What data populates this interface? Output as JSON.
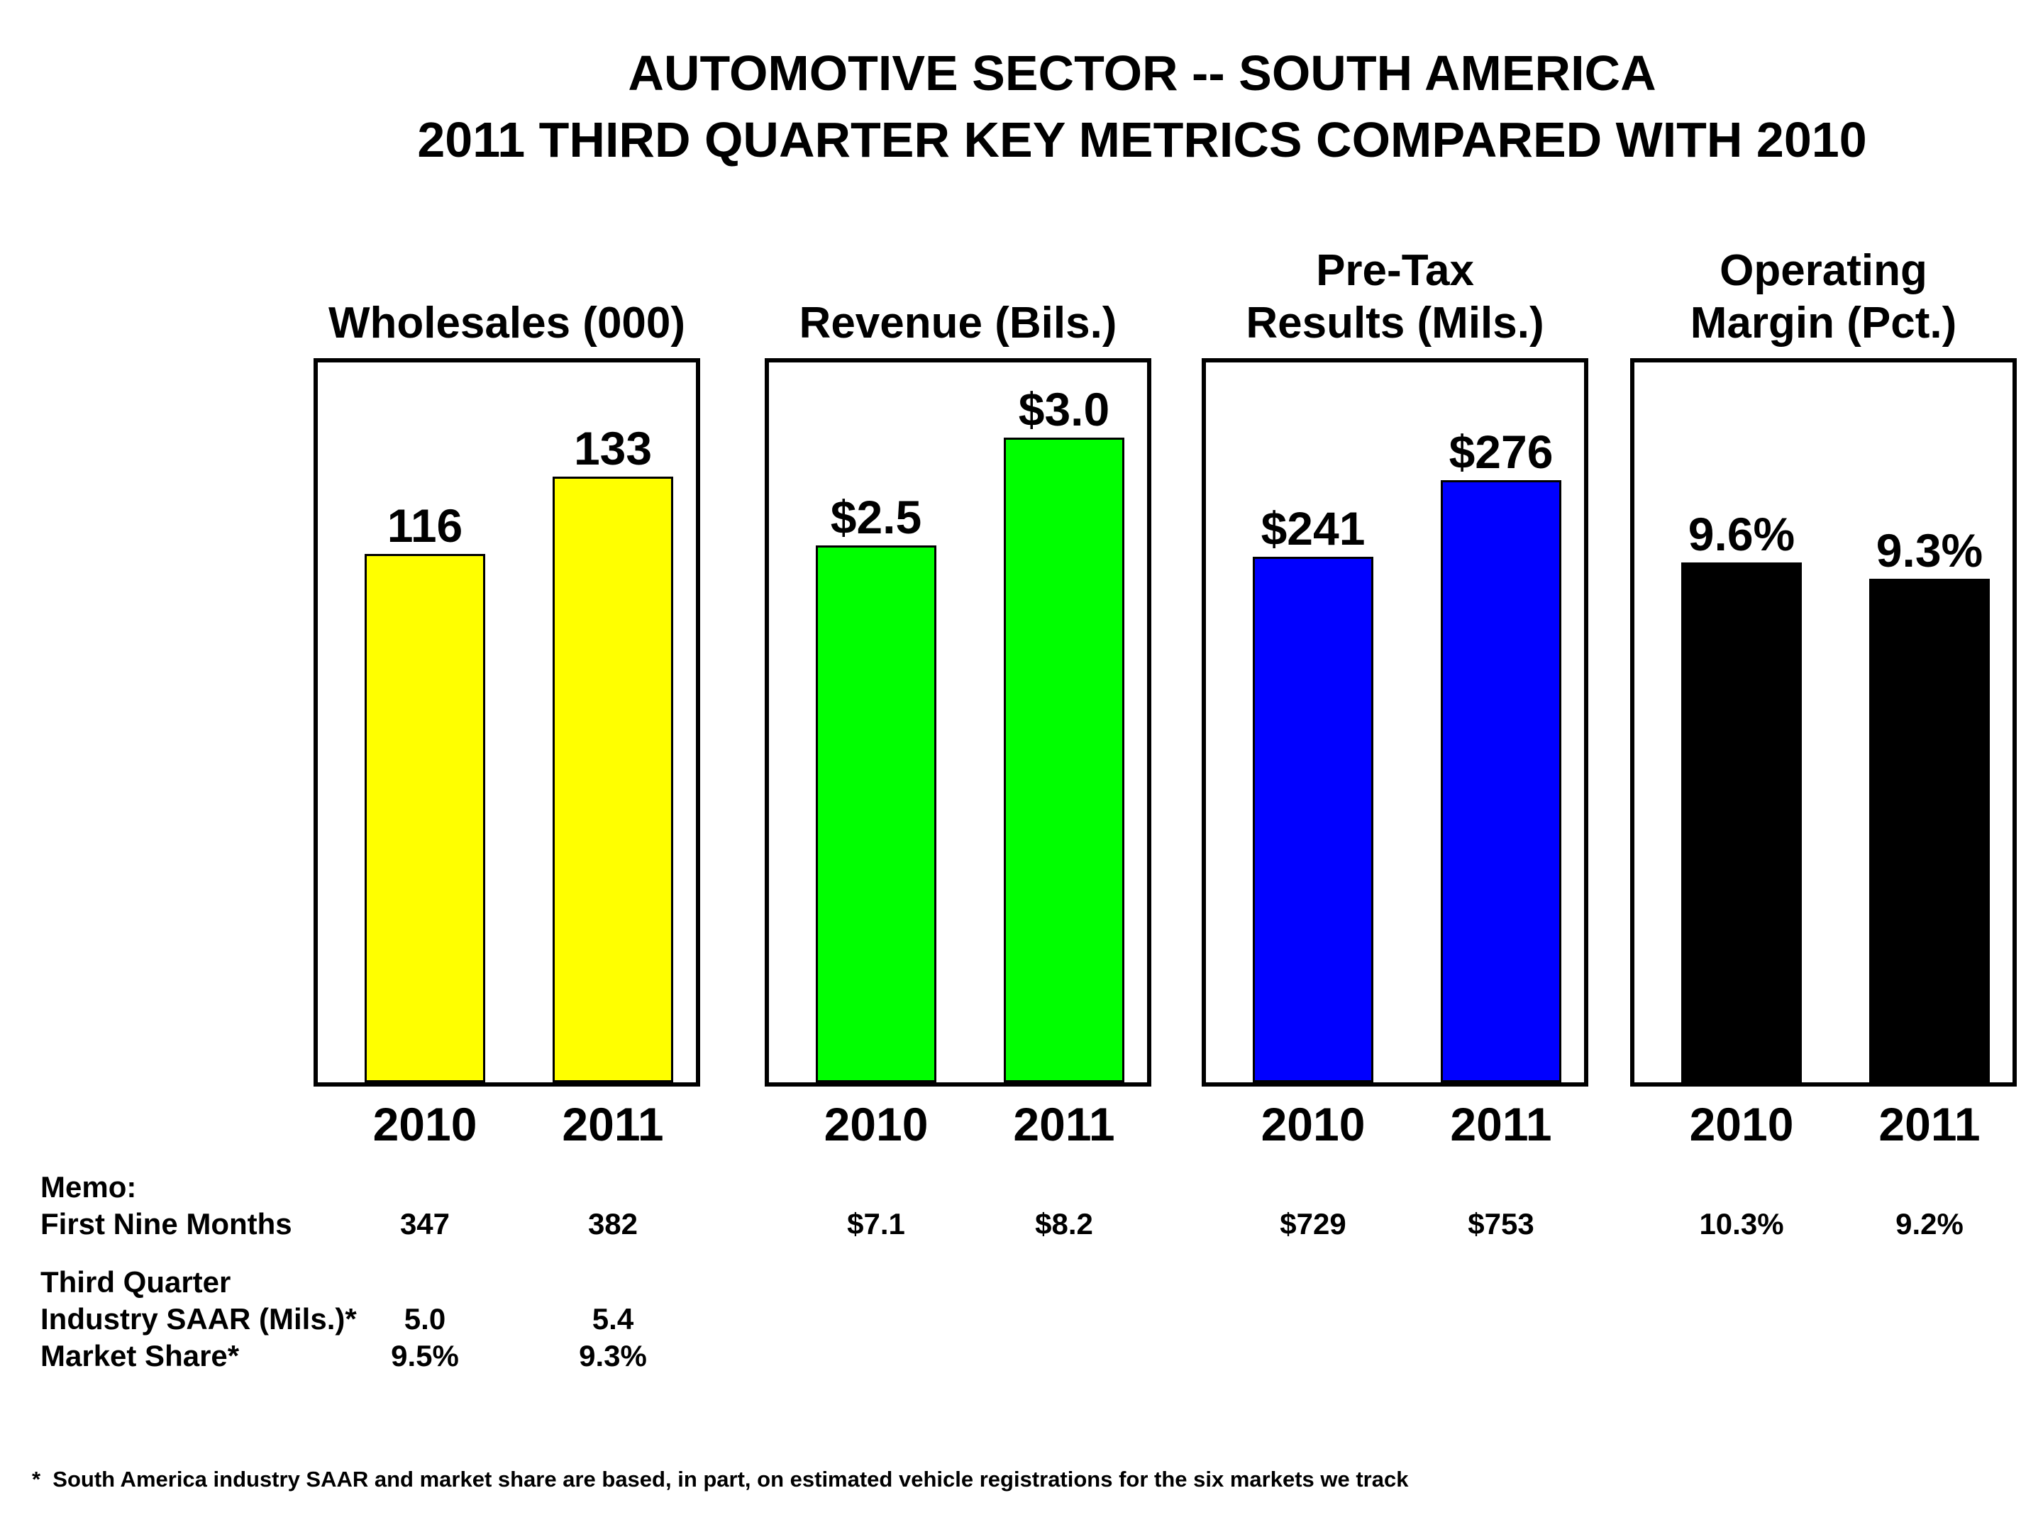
{
  "title": {
    "line1": "AUTOMOTIVE SECTOR -- SOUTH AMERICA",
    "line2": "2011 THIRD QUARTER KEY METRICS COMPARED WITH 2010"
  },
  "chart_data": [
    {
      "type": "bar",
      "title_lines": [
        "Wholesales (000)"
      ],
      "categories": [
        "2010",
        "2011"
      ],
      "values": [
        116,
        133
      ],
      "value_labels": [
        "116",
        "133"
      ],
      "bar_color": "#FFFF00",
      "ylim": [
        0,
        158
      ],
      "grid": false,
      "legend": "none"
    },
    {
      "type": "bar",
      "title_lines": [
        "Revenue (Bils.)"
      ],
      "categories": [
        "2010",
        "2011"
      ],
      "values": [
        2.5,
        3.0
      ],
      "value_labels": [
        "$2.5",
        "$3.0"
      ],
      "bar_color": "#00FF00",
      "ylim": [
        0,
        3.35
      ],
      "grid": false,
      "legend": "none"
    },
    {
      "type": "bar",
      "title_lines": [
        "Pre-Tax",
        "Results (Mils.)"
      ],
      "categories": [
        "2010",
        "2011"
      ],
      "values": [
        241,
        276
      ],
      "value_labels": [
        "$241",
        "$276"
      ],
      "bar_color": "#0000FF",
      "ylim": [
        0,
        330
      ],
      "grid": false,
      "legend": "none"
    },
    {
      "type": "bar",
      "title_lines": [
        "Operating",
        "Margin (Pct.)"
      ],
      "categories": [
        "2010",
        "2011"
      ],
      "values": [
        9.6,
        9.3
      ],
      "value_labels": [
        "9.6%",
        "9.3%"
      ],
      "bar_color": "#000000",
      "ylim": [
        0,
        13.3
      ],
      "grid": false,
      "legend": "none"
    }
  ],
  "memo": {
    "heading": "Memo:",
    "rows": [
      {
        "label": "First Nine Months",
        "values": [
          "347",
          "382",
          "$7.1",
          "$8.2",
          "$729",
          "$753",
          "10.3%",
          "9.2%"
        ]
      },
      {
        "label": "Third Quarter",
        "values": []
      },
      {
        "label": "Industry SAAR (Mils.)*",
        "values": [
          "5.0",
          "5.4"
        ]
      },
      {
        "label": "Market Share*",
        "values": [
          "9.5%",
          "9.3%"
        ]
      }
    ]
  },
  "footnote": "*  South America industry SAAR and market share are based, in part, on estimated vehicle registrations for the six markets we track"
}
